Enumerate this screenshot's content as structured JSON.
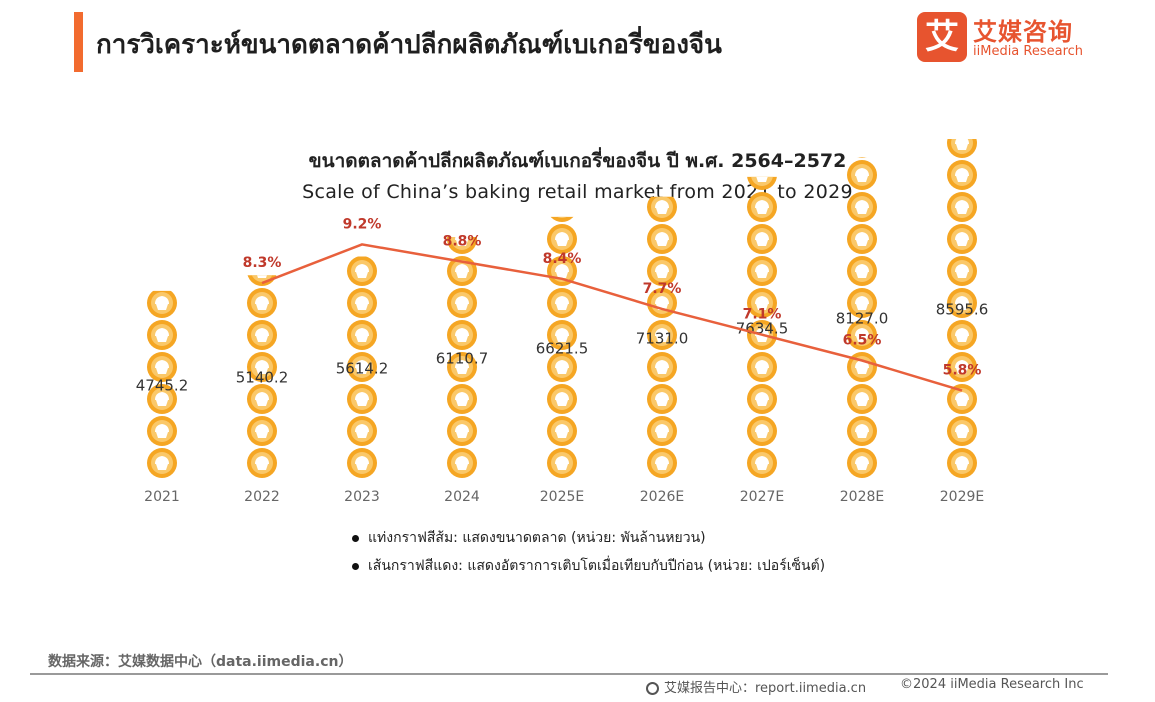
{
  "header": {
    "title": "การวิเคราะห์ขนาดตลาดค้าปลีกผลิตภัณฑ์เบเกอรี่ของจีน",
    "logo_mark": "艾",
    "logo_cn": "艾媒咨询",
    "logo_en": "iiMedia Research"
  },
  "chart_data": {
    "type": "bar",
    "title": "ขนาดตลาดค้าปลีกผลิตภัณฑ์เบเกอรี่ของจีน ปี พ.ศ. 2564–2572",
    "subtitle": "Scale of China’s baking retail market from 2021 to 2029",
    "categories": [
      "2021",
      "2022",
      "2023",
      "2024",
      "2025E",
      "2026E",
      "2027E",
      "2028E",
      "2029E"
    ],
    "series": [
      {
        "type": "bar",
        "values": [
          4745.2,
          5140.2,
          5614.2,
          6110.7,
          6621.5,
          7131.0,
          7634.5,
          8127.0,
          8595.6
        ],
        "labels": [
          "4745.2",
          "5140.2",
          "5614.2",
          "6110.7",
          "6621.5",
          "7131.0",
          "7634.5",
          "8127.0",
          "8595.6"
        ],
        "color": "#f5a623"
      },
      {
        "type": "line",
        "values": [
          8.3,
          9.2,
          8.8,
          8.4,
          7.7,
          7.1,
          6.5,
          5.8
        ],
        "x": [
          "2022",
          "2023",
          "2024",
          "2025E",
          "2026E",
          "2027E",
          "2028E",
          "2029E"
        ],
        "labels": [
          "8.3%",
          "9.2%",
          "8.8%",
          "8.4%",
          "7.7%",
          "7.1%",
          "6.5%",
          "5.8%"
        ],
        "color": "#e8603c"
      }
    ],
    "legend": [
      "แท่งกราฟสีส้ม: แสดงขนาดตลาด (หน่วย: พันล้านหยวน)",
      "เส้นกราฟสีแดง: แสดงอัตราการเติบโตเมื่อเทียบกับปีก่อน (หน่วย: เปอร์เซ็นต์)"
    ],
    "ylim_bar": [
      0,
      9000
    ],
    "ylim_line": [
      0,
      10
    ],
    "grid": false,
    "legend_placement": "bottom"
  },
  "footer": {
    "source": "数据来源：艾媒数据中心（data.iimedia.cn）",
    "report": "艾媒报告中心：report.iimedia.cn",
    "copyright": "©2024 iiMedia Research Inc"
  }
}
